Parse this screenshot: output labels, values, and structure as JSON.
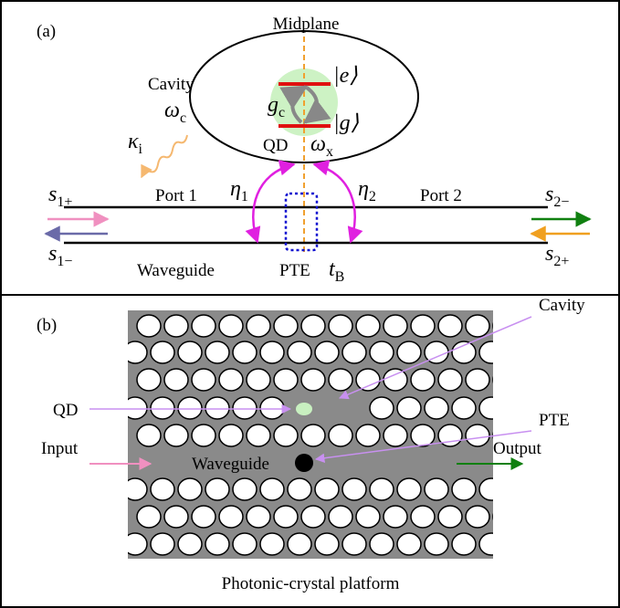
{
  "panel_a": {
    "label": "(a)",
    "midplane": "Midplane",
    "cavity": "Cavity",
    "omega_c": {
      "base": "ω",
      "sub": "c"
    },
    "kappa_i": {
      "base": "κ",
      "sub": "i"
    },
    "g_c": {
      "base": "g",
      "sub": "c"
    },
    "excited": "|e⟩",
    "ground": "|g⟩",
    "qd": "QD",
    "omega_x": {
      "base": "ω",
      "sub": "x"
    },
    "eta_1": {
      "base": "η",
      "sub": "1"
    },
    "eta_2": {
      "base": "η",
      "sub": "2"
    },
    "port_1": "Port 1",
    "port_2": "Port 2",
    "s_1_plus": {
      "base": "s",
      "sub": "1+"
    },
    "s_1_minus": {
      "base": "s",
      "sub": "1−"
    },
    "s_2_minus": {
      "base": "s",
      "sub": "2−"
    },
    "s_2_plus": {
      "base": "s",
      "sub": "2+"
    },
    "waveguide": "Waveguide",
    "pte": "PTE",
    "t_B": {
      "base": "t",
      "sub": "B"
    }
  },
  "panel_b": {
    "label": "(b)",
    "cavity": "Cavity",
    "qd": "QD",
    "pte": "PTE",
    "input": "Input",
    "waveguide": "Waveguide",
    "output": "Output",
    "caption": "Photonic-crystal platform"
  }
}
